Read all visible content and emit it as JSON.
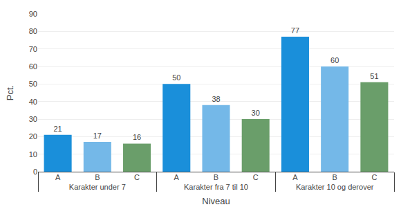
{
  "chart_data": {
    "type": "bar",
    "categories": [
      "Karakter under 7",
      "Karakter fra 7 til 10",
      "Karakter 10 og derover"
    ],
    "series": [
      {
        "name": "A",
        "color": "#1a8fda",
        "values": [
          21,
          50,
          77
        ]
      },
      {
        "name": "B",
        "color": "#74b8e8",
        "values": [
          17,
          38,
          60
        ]
      },
      {
        "name": "C",
        "color": "#6a9e6a",
        "values": [
          16,
          30,
          51
        ]
      }
    ],
    "xlabel": "Niveau",
    "ylabel": "Pct.",
    "ylim": [
      0,
      90
    ],
    "yticks": [
      0,
      10,
      20,
      30,
      40,
      50,
      60,
      70,
      80,
      90
    ],
    "grid": true,
    "data_labels": true
  }
}
